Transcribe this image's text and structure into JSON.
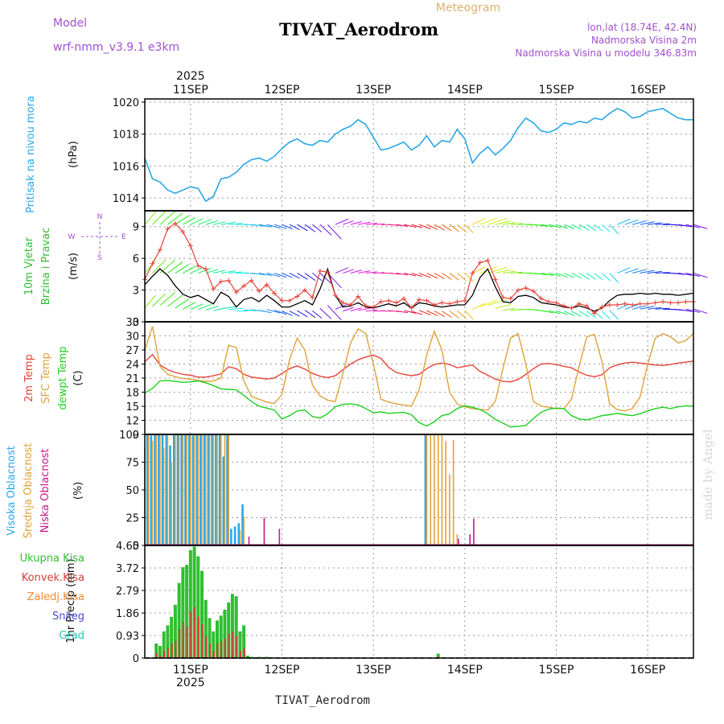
{
  "header": {
    "model_label": "Model",
    "model_name": "wrf-nmm_v3.9.1 e3km",
    "title": "TIVAT_Aerodrom",
    "subtitle": "Meteogram",
    "lonlat": "lon,lat (18.74E, 42.4N)",
    "elevation": "Nadmorska Visina 2m",
    "model_elevation": "Nadmorska Visina u modelu 346.83m"
  },
  "footer": {
    "station": "TIVAT_Aerodrom",
    "watermark": "made by Angel"
  },
  "time_axis": {
    "year": "2025",
    "days": [
      "11SEP",
      "12SEP",
      "13SEP",
      "14SEP",
      "15SEP",
      "16SEP"
    ],
    "hours_start": -12,
    "hours_end": 132
  },
  "colors": {
    "pressure": "#2aa7e8",
    "temp2m": "#e8443a",
    "sfc_temp": "#e0a23a",
    "dewpt": "#1fcf1f",
    "cloud_high": "#2aa7e8",
    "cloud_mid": "#e0a23a",
    "cloud_low": "#c8168a",
    "precip_total": "#2fbf2f",
    "precip_conv": "#d93a3a",
    "precip_frozen": "#f08a30",
    "snow": "#4a4ad8",
    "hail": "#23c8b8"
  },
  "chart_data": [
    {
      "id": "pressure",
      "type": "line",
      "ylabel_name": "Pritisak na nivou mora",
      "ylabel_unit": "(hPa)",
      "ylim": [
        1013.2,
        1020.2
      ],
      "yticks": [
        "1014",
        "1016",
        "1018",
        "1020"
      ],
      "x": [
        -12,
        -10,
        -8,
        -6,
        -4,
        -2,
        0,
        2,
        4,
        6,
        8,
        10,
        12,
        14,
        16,
        18,
        20,
        22,
        24,
        26,
        28,
        30,
        32,
        34,
        36,
        38,
        40,
        42,
        44,
        46,
        48,
        50,
        52,
        54,
        56,
        58,
        60,
        62,
        64,
        66,
        68,
        70,
        72,
        74,
        76,
        78,
        80,
        82,
        84,
        86,
        88,
        90,
        92,
        94,
        96,
        98,
        100,
        102,
        104,
        106,
        108,
        110,
        112,
        114,
        116,
        118,
        120,
        122,
        124,
        126,
        128,
        130,
        132
      ],
      "values": [
        1016.5,
        1015.2,
        1015.0,
        1014.5,
        1014.3,
        1014.5,
        1014.7,
        1014.6,
        1013.8,
        1014.1,
        1015.2,
        1015.3,
        1015.6,
        1016.1,
        1016.4,
        1016.5,
        1016.3,
        1016.6,
        1017.1,
        1017.5,
        1017.7,
        1017.4,
        1017.3,
        1017.6,
        1017.5,
        1018.0,
        1018.3,
        1018.5,
        1018.9,
        1018.6,
        1017.8,
        1017.0,
        1017.1,
        1017.3,
        1017.5,
        1017.0,
        1017.3,
        1017.9,
        1017.2,
        1017.6,
        1017.5,
        1018.3,
        1017.7,
        1016.2,
        1016.8,
        1017.2,
        1016.7,
        1017.1,
        1017.6,
        1018.4,
        1019.0,
        1018.7,
        1018.2,
        1018.1,
        1018.3,
        1018.7,
        1018.6,
        1018.8,
        1018.7,
        1019.0,
        1018.9,
        1019.3,
        1019.6,
        1019.4,
        1019.0,
        1019.1,
        1019.4,
        1019.5,
        1019.6,
        1019.3,
        1019.0,
        1018.9,
        1018.9
      ],
      "series_name": "Pritisak na nivou mora"
    },
    {
      "id": "wind",
      "type": "line",
      "ylabel_name": "10m Vjetar",
      "ylabel_name2": "Brzina i Pravac",
      "ylabel_unit": "(m/s)",
      "compass": [
        "N",
        "W",
        "E",
        "S"
      ],
      "ylim": [
        0,
        10.5
      ],
      "yticks": [
        "0",
        "3",
        "6",
        "9"
      ],
      "x": [
        -12,
        -10,
        -8,
        -6,
        -4,
        -2,
        0,
        2,
        4,
        6,
        8,
        10,
        12,
        14,
        16,
        18,
        20,
        22,
        24,
        26,
        28,
        30,
        32,
        34,
        36,
        38,
        40,
        42,
        44,
        46,
        48,
        50,
        52,
        54,
        56,
        58,
        60,
        62,
        64,
        66,
        68,
        70,
        72,
        74,
        76,
        78,
        80,
        82,
        84,
        86,
        88,
        90,
        92,
        94,
        96,
        98,
        100,
        102,
        104,
        106,
        108,
        110,
        112,
        114,
        116,
        118,
        120,
        122,
        124,
        126,
        128,
        130,
        132
      ],
      "series": [
        {
          "name": "mean",
          "color": "#000000",
          "values": [
            3.5,
            4.3,
            5.0,
            4.4,
            3.4,
            2.6,
            2.3,
            2.5,
            2.1,
            1.7,
            2.8,
            2.4,
            1.4,
            2.1,
            2.3,
            1.9,
            2.5,
            2.0,
            1.4,
            1.4,
            1.7,
            2.0,
            1.6,
            3.1,
            5.0,
            2.5,
            1.4,
            1.5,
            1.8,
            1.4,
            1.3,
            1.5,
            1.7,
            1.5,
            1.8,
            1.3,
            1.8,
            1.7,
            1.5,
            1.4,
            1.5,
            1.6,
            1.6,
            2.5,
            4.2,
            5.0,
            3.3,
            1.9,
            1.8,
            2.4,
            2.5,
            2.3,
            1.8,
            1.7,
            1.6,
            1.4,
            1.3,
            1.5,
            1.3,
            1.0,
            1.3,
            2.0,
            2.5,
            2.6,
            2.6,
            2.7,
            2.6,
            2.7,
            2.6,
            2.6,
            2.5,
            2.6,
            2.7
          ]
        },
        {
          "name": "gust",
          "color": "#e8443a",
          "values": [
            4.0,
            5.5,
            6.8,
            8.8,
            9.3,
            8.5,
            7.2,
            5.3,
            5.0,
            3.1,
            3.8,
            3.9,
            2.8,
            3.4,
            3.9,
            2.9,
            3.5,
            2.7,
            2.0,
            2.0,
            2.4,
            3.0,
            2.3,
            4.8,
            4.7,
            2.5,
            1.8,
            1.6,
            2.4,
            1.5,
            1.4,
            1.9,
            2.0,
            1.8,
            2.2,
            1.3,
            2.1,
            2.0,
            1.6,
            1.8,
            1.7,
            1.9,
            2.0,
            4.6,
            5.6,
            5.8,
            4.0,
            2.3,
            2.2,
            3.0,
            3.2,
            2.9,
            2.2,
            1.9,
            1.8,
            1.5,
            1.3,
            1.7,
            1.5,
            0.8,
            1.4,
            1.6,
            1.6,
            1.7,
            1.6,
            1.7,
            1.7,
            1.8,
            1.9,
            1.8,
            1.8,
            1.9,
            1.9
          ]
        }
      ]
    },
    {
      "id": "temperature",
      "type": "line",
      "ylabel_name": "2m Temp",
      "ylabel_name2": "SFC Temp",
      "ylabel_name3": "dewpt Temp",
      "ylabel_unit": "(C)",
      "ylim": [
        9,
        33
      ],
      "yticks": [
        "9",
        "12",
        "15",
        "18",
        "21",
        "24",
        "27",
        "30",
        "33"
      ],
      "x": [
        -12,
        -10,
        -8,
        -6,
        -4,
        -2,
        0,
        2,
        4,
        6,
        8,
        10,
        12,
        14,
        16,
        18,
        20,
        22,
        24,
        26,
        28,
        30,
        32,
        34,
        36,
        38,
        40,
        42,
        44,
        46,
        48,
        50,
        52,
        54,
        56,
        58,
        60,
        62,
        64,
        66,
        68,
        70,
        72,
        74,
        76,
        78,
        80,
        82,
        84,
        86,
        88,
        90,
        92,
        94,
        96,
        98,
        100,
        102,
        104,
        106,
        108,
        110,
        112,
        114,
        116,
        118,
        120,
        122,
        124,
        126,
        128,
        130,
        132
      ],
      "series": [
        {
          "name": "2m Temp",
          "color": "#e8443a",
          "values": [
            24.5,
            26.0,
            23.8,
            22.8,
            22.2,
            21.8,
            21.6,
            21.2,
            21.2,
            21.5,
            21.9,
            23.4,
            23.0,
            21.8,
            21.2,
            21.0,
            20.8,
            21.0,
            22.0,
            23.0,
            23.6,
            22.9,
            22.0,
            21.4,
            21.1,
            21.5,
            22.8,
            24.0,
            24.9,
            25.5,
            25.9,
            25.2,
            23.3,
            22.2,
            21.8,
            21.5,
            21.8,
            23.0,
            23.9,
            24.2,
            23.9,
            23.2,
            23.5,
            23.8,
            22.4,
            21.6,
            20.8,
            20.3,
            20.2,
            20.7,
            21.8,
            23.0,
            24.0,
            24.1,
            23.9,
            23.5,
            23.2,
            22.3,
            21.6,
            21.3,
            21.7,
            23.2,
            23.8,
            24.2,
            24.4,
            24.2,
            24.0,
            23.8,
            23.7,
            23.9,
            24.2,
            24.4,
            24.6
          ]
        },
        {
          "name": "SFC Temp",
          "color": "#e0a23a",
          "values": [
            27.0,
            32.0,
            23.5,
            21.8,
            21.3,
            20.9,
            20.8,
            20.5,
            20.3,
            20.4,
            21.0,
            28.0,
            27.5,
            20.4,
            17.1,
            16.5,
            15.9,
            15.6,
            17.5,
            25.0,
            29.5,
            27.0,
            19.5,
            17.2,
            16.3,
            16.0,
            22.0,
            28.5,
            31.5,
            30.5,
            24.0,
            16.5,
            15.9,
            15.5,
            15.3,
            15.0,
            18.5,
            26.0,
            31.0,
            27.0,
            18.0,
            15.5,
            14.9,
            14.5,
            14.3,
            14.2,
            16.0,
            23.0,
            29.5,
            30.5,
            24.0,
            16.0,
            15.0,
            14.8,
            14.5,
            14.5,
            16.5,
            23.5,
            29.8,
            30.3,
            24.5,
            15.5,
            14.3,
            14.0,
            14.5,
            17.0,
            24.0,
            29.5,
            30.5,
            29.8,
            28.5,
            29.0,
            30.5
          ]
        },
        {
          "name": "dewpt Temp",
          "color": "#1fcf1f",
          "values": [
            17.8,
            18.8,
            20.4,
            20.5,
            20.3,
            20.1,
            20.2,
            20.4,
            20.0,
            19.4,
            18.7,
            18.6,
            18.5,
            17.3,
            16.0,
            15.0,
            14.6,
            14.2,
            12.3,
            13.0,
            14.0,
            14.2,
            12.8,
            12.5,
            13.4,
            14.9,
            15.4,
            15.5,
            15.3,
            14.5,
            13.6,
            13.8,
            13.5,
            13.6,
            13.7,
            13.2,
            11.5,
            10.8,
            11.7,
            13.0,
            13.4,
            14.5,
            15.1,
            14.8,
            14.3,
            13.4,
            12.2,
            11.4,
            10.6,
            10.7,
            10.9,
            12.4,
            13.7,
            14.4,
            14.6,
            14.5,
            13.0,
            12.3,
            12.1,
            12.5,
            13.0,
            13.2,
            13.5,
            13.2,
            13.0,
            13.4,
            14.0,
            14.5,
            14.8,
            14.5,
            14.9,
            15.1,
            15.0
          ]
        }
      ]
    },
    {
      "id": "cloud",
      "type": "bar",
      "ylabel_name": "Visoka Oblacnost",
      "ylabel_name2": "Srednja Oblacnost",
      "ylabel_name3": "Niska Oblacnost",
      "ylabel_unit": "(%)",
      "ylim": [
        0,
        100
      ],
      "yticks": [
        "0",
        "25",
        "50",
        "75",
        "100"
      ],
      "x": [
        -12,
        -11,
        -10,
        -9,
        -8,
        -7,
        -6,
        -5,
        -4,
        -3,
        -2,
        -1,
        0,
        1,
        2,
        3,
        4,
        5,
        6,
        7,
        8,
        9,
        10,
        11,
        12,
        13,
        14,
        15,
        16,
        19,
        23,
        60,
        61,
        62,
        63,
        64,
        65,
        66,
        67,
        68,
        69,
        70,
        73,
        74,
        78
      ],
      "series": [
        {
          "name": "Visoka",
          "color": "#2aa7e8",
          "values": [
            0,
            100,
            99,
            100,
            100,
            100,
            100,
            90,
            100,
            100,
            100,
            100,
            100,
            99,
            100,
            100,
            100,
            100,
            100,
            100,
            100,
            80,
            100,
            15,
            17,
            20,
            37,
            0,
            0,
            0,
            0,
            0,
            0,
            100,
            0,
            0,
            0,
            0,
            0,
            0,
            0,
            0,
            0,
            0,
            0
          ]
        },
        {
          "name": "Srednja",
          "color": "#e0a23a",
          "values": [
            88,
            100,
            94,
            100,
            100,
            88,
            99,
            75,
            100,
            100,
            100,
            100,
            100,
            100,
            100,
            100,
            100,
            100,
            100,
            100,
            100,
            100,
            100,
            0,
            0,
            14,
            26,
            0,
            0,
            0,
            0,
            0,
            0,
            100,
            100,
            100,
            100,
            100,
            94,
            64,
            95,
            10,
            0,
            0,
            0
          ]
        },
        {
          "name": "Niska",
          "color": "#c8168a",
          "values": [
            0,
            0,
            0,
            0,
            0,
            0,
            0,
            0,
            0,
            0,
            0,
            0,
            0,
            0,
            0,
            0,
            0,
            0,
            0,
            0,
            0,
            0,
            0,
            0,
            0,
            0,
            0,
            8,
            0,
            25,
            15,
            0,
            0,
            0,
            0,
            0,
            0,
            0,
            0,
            0,
            0,
            6,
            10,
            24,
            0
          ]
        }
      ]
    },
    {
      "id": "precip",
      "type": "bar",
      "ylabel_name": "1hr Precip",
      "ylabel_unit": "(mm)",
      "legend": [
        "Ukupna Kisa",
        "Konvek.Kisa",
        "Zaledj.Kisa",
        "Snijeg",
        "Grad"
      ],
      "ylim": [
        0,
        4.65
      ],
      "yticks": [
        "0",
        "0.93",
        "1.86",
        "2.79",
        "3.72",
        "4.65"
      ],
      "x": [
        -9,
        -8,
        -7,
        -6,
        -5,
        -4,
        -3,
        -2,
        -1,
        0,
        1,
        2,
        3,
        4,
        5,
        6,
        7,
        8,
        9,
        10,
        11,
        12,
        13,
        14,
        15,
        16,
        17,
        18,
        19,
        20,
        21,
        22,
        65
      ],
      "series": [
        {
          "name": "Ukupna Kisa",
          "color": "#2fbf2f",
          "values": [
            0.6,
            0.5,
            1.1,
            1.35,
            1.7,
            2.2,
            3.1,
            3.75,
            3.85,
            4.45,
            4.6,
            4.2,
            3.6,
            2.4,
            1.65,
            1.1,
            1.55,
            1.75,
            2.0,
            2.3,
            2.65,
            2.55,
            1.1,
            1.35,
            0.1,
            0.05,
            0.02,
            0.05,
            0.0,
            0.05,
            0.02,
            0.0,
            0.18
          ]
        },
        {
          "name": "Konvek.Kisa",
          "color": "#d93a3a",
          "values": [
            0.2,
            0.1,
            0.3,
            0.4,
            0.6,
            0.7,
            1.2,
            1.5,
            1.3,
            1.9,
            2.1,
            1.7,
            1.4,
            0.9,
            0.6,
            0.3,
            0.6,
            0.7,
            0.8,
            1.0,
            1.1,
            0.9,
            0.3,
            0.4,
            0.0,
            0.0,
            0.0,
            0.0,
            0.0,
            0.0,
            0.0,
            0.0,
            0.05
          ]
        }
      ]
    }
  ]
}
